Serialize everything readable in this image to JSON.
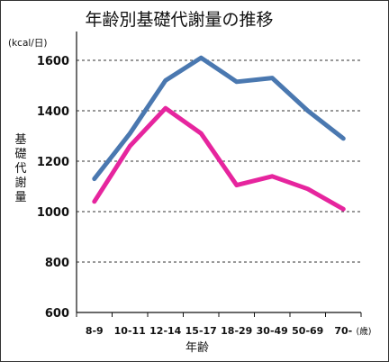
{
  "chart_data": {
    "type": "line",
    "title": "年齢別基礎代謝量の推移",
    "unit_label": "(kcal/日)",
    "ylabel": "基礎代謝量",
    "xlabel": "年齢",
    "x_unit_label": "(歳)",
    "categories": [
      "8-9",
      "10-11",
      "12-14",
      "15-17",
      "18-29",
      "30-49",
      "50-69",
      "70-"
    ],
    "ylim": [
      600,
      1700
    ],
    "yticks": [
      600,
      800,
      1000,
      1200,
      1400,
      1600
    ],
    "grid": true,
    "series": [
      {
        "color": "#4a78b0",
        "values": [
          1130,
          1310,
          1520,
          1610,
          1515,
          1530,
          1400,
          1290
        ]
      },
      {
        "color": "#e6259e",
        "values": [
          1040,
          1260,
          1410,
          1310,
          1105,
          1140,
          1090,
          1010
        ]
      }
    ]
  }
}
